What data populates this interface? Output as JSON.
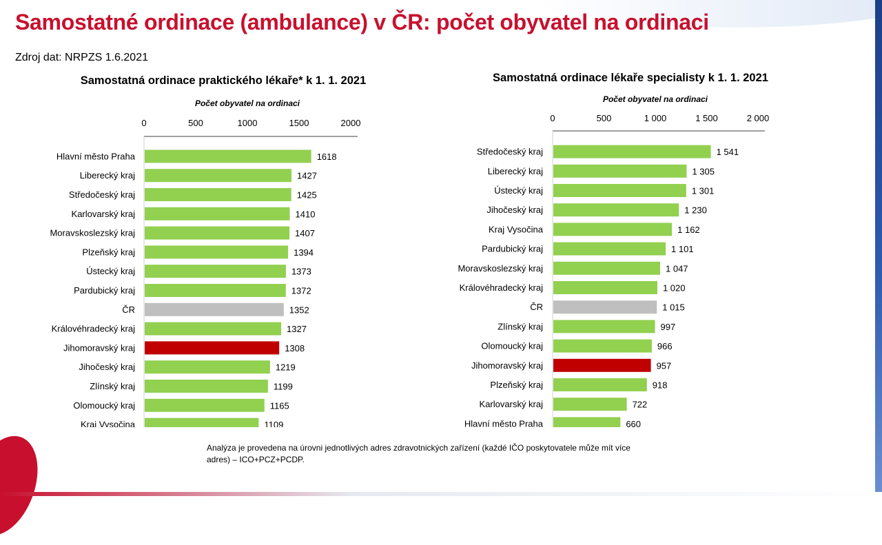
{
  "title": "Samostatné ordinace (ambulance) v ČR: počet obyvatel na ordinaci",
  "source": "Zdroj dat: NRPZS 1.6.2021",
  "note": "Analýza je provedena na úrovni jednotlivých adres zdravotnických zařízení (každé IČO poskytovatele může mít více adres) – ICO+PCZ+PCDP.",
  "colors": {
    "default": "#92d050",
    "cr": "#bfbfbf",
    "highlight": "#c00000",
    "title": "#c8102e"
  },
  "chart_data": [
    {
      "type": "bar",
      "orientation": "horizontal",
      "title": "Samostatná ordinace praktického lékaře* k 1. 1. 2021",
      "axis_title": "Počet obyvatel na ordinaci",
      "xlim": [
        0,
        2000
      ],
      "ticks": [
        0,
        500,
        1000,
        1500,
        2000
      ],
      "tick_labels": [
        "0",
        "500",
        "1000",
        "1500",
        "2000"
      ],
      "categories": [
        "Hlavní město Praha",
        "Liberecký kraj",
        "Středočeský kraj",
        "Karlovarský kraj",
        "Moravskoslezský kraj",
        "Plzeňský kraj",
        "Ústecký kraj",
        "Pardubický kraj",
        "ČR",
        "Královéhradecký kraj",
        "Jihomoravský kraj",
        "Jihočeský kraj",
        "Zlínský kraj",
        "Olomoucký kraj",
        "Kraj Vysočina"
      ],
      "values": [
        1618,
        1427,
        1425,
        1410,
        1407,
        1394,
        1373,
        1372,
        1352,
        1327,
        1308,
        1219,
        1199,
        1165,
        1109
      ],
      "value_labels": [
        "1618",
        "1427",
        "1425",
        "1410",
        "1407",
        "1394",
        "1373",
        "1372",
        "1352",
        "1327",
        "1308",
        "1219",
        "1199",
        "1165",
        "1109"
      ],
      "bar_colors": [
        "default",
        "default",
        "default",
        "default",
        "default",
        "default",
        "default",
        "default",
        "cr",
        "default",
        "highlight",
        "default",
        "default",
        "default",
        "default"
      ]
    },
    {
      "type": "bar",
      "orientation": "horizontal",
      "title": "Samostatná ordinace lékaře specialisty k 1. 1. 2021",
      "axis_title": "Počet obyvatel na ordinaci",
      "xlim": [
        0,
        2000
      ],
      "ticks": [
        0,
        500,
        1000,
        1500,
        2000
      ],
      "tick_labels": [
        "0",
        "500",
        "1 000",
        "1 500",
        "2 000"
      ],
      "categories": [
        "Středočeský kraj",
        "Liberecký kraj",
        "Ústecký kraj",
        "Jihočeský kraj",
        "Kraj Vysočina",
        "Pardubický kraj",
        "Moravskoslezský kraj",
        "Královéhradecký kraj",
        "ČR",
        "Zlínský kraj",
        "Olomoucký kraj",
        "Jihomoravský kraj",
        "Plzeňský kraj",
        "Karlovarský kraj",
        "Hlavní město Praha"
      ],
      "values": [
        1541,
        1305,
        1301,
        1230,
        1162,
        1101,
        1047,
        1020,
        1015,
        997,
        966,
        957,
        918,
        722,
        660
      ],
      "value_labels": [
        "1 541",
        "1 305",
        "1 301",
        "1 230",
        "1 162",
        "1 101",
        "1 047",
        "1 020",
        "1 015",
        "997",
        "966",
        "957",
        "918",
        "722",
        "660"
      ],
      "bar_colors": [
        "default",
        "default",
        "default",
        "default",
        "default",
        "default",
        "default",
        "default",
        "cr",
        "default",
        "default",
        "highlight",
        "default",
        "default",
        "default"
      ]
    }
  ]
}
